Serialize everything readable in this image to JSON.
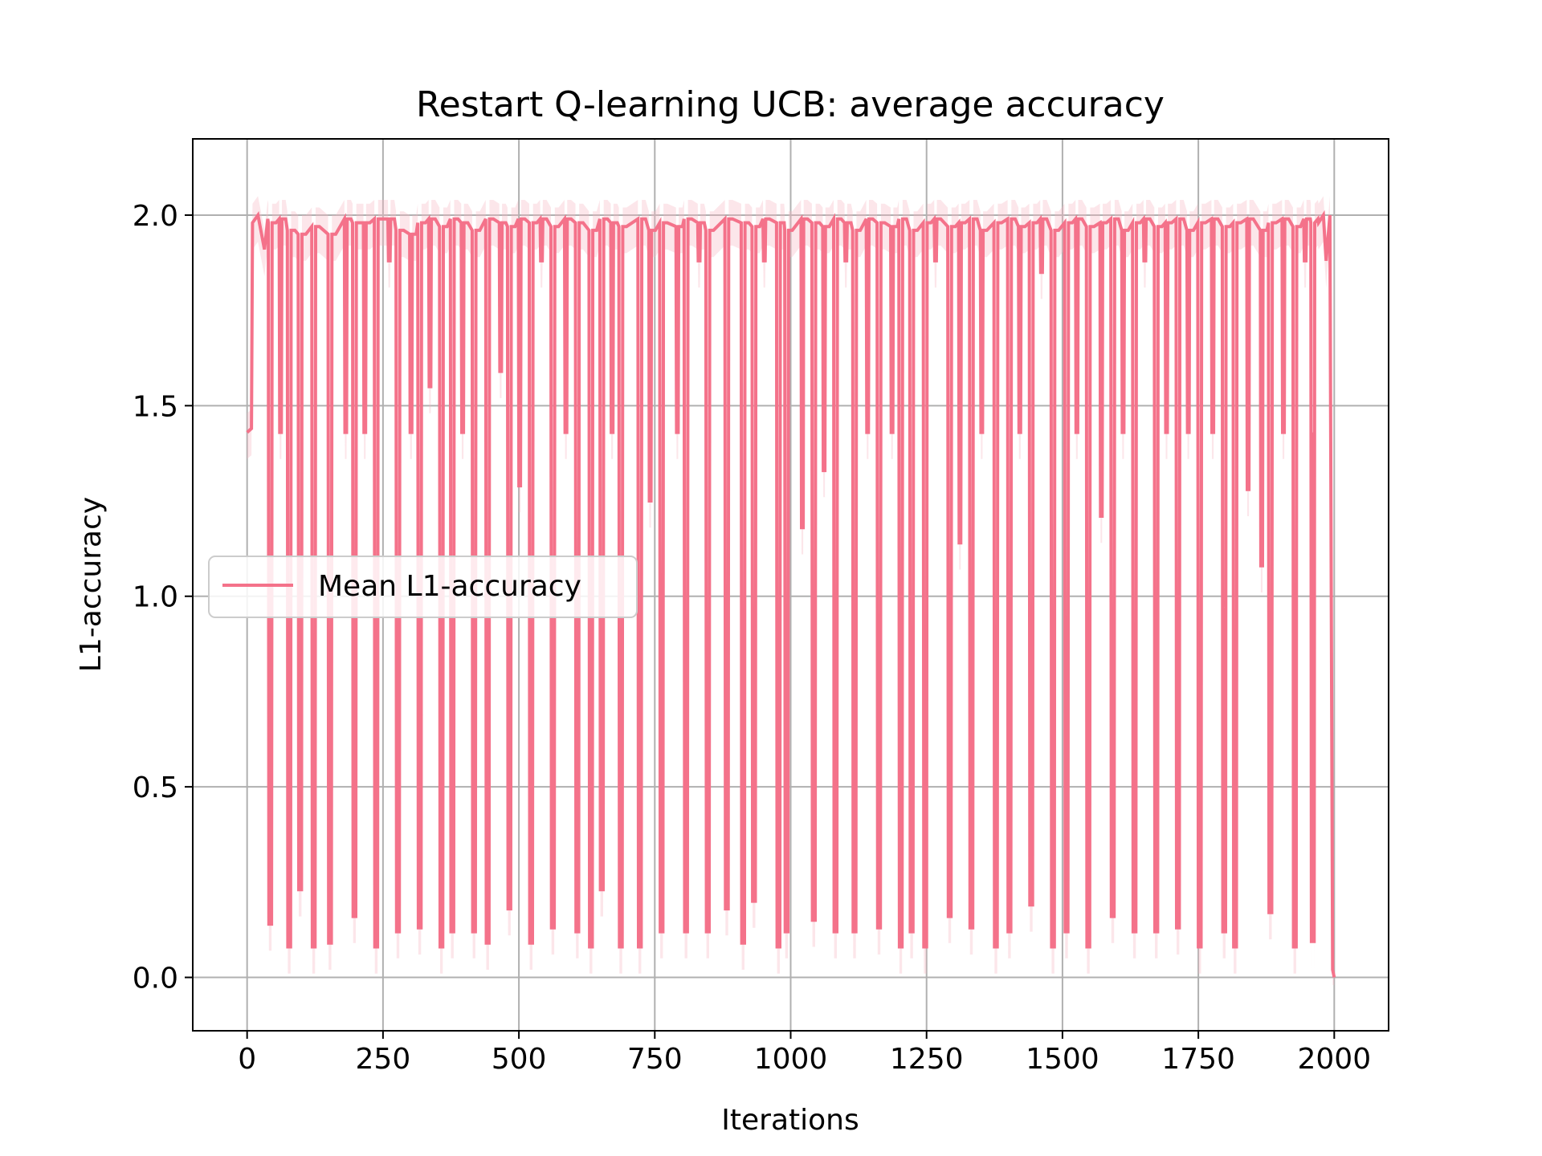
{
  "chart_data": {
    "type": "line",
    "title": "Restart Q-learning UCB: average accuracy",
    "xlabel": "Iterations",
    "ylabel": "L1-accuracy",
    "xlim": [
      -100,
      2100
    ],
    "ylim": [
      -0.14,
      2.2
    ],
    "x_ticks": [
      0,
      250,
      500,
      750,
      1000,
      1250,
      1500,
      1750,
      2000
    ],
    "x_tick_labels": [
      "0",
      "250",
      "500",
      "750",
      "1000",
      "1250",
      "1500",
      "1750",
      "2000"
    ],
    "y_ticks": [
      0.0,
      0.5,
      1.0,
      1.5,
      2.0
    ],
    "y_tick_labels": [
      "0.0",
      "0.5",
      "1.0",
      "1.5",
      "2.0"
    ],
    "grid": true,
    "legend_position": "center-left",
    "color": "#f4728a",
    "band_color": "#f7b6c4",
    "series": [
      {
        "name": "Mean L1-accuracy",
        "start_points": [
          [
            0,
            1.43
          ],
          [
            8,
            1.44
          ],
          [
            10,
            1.98
          ],
          [
            20,
            2.0
          ],
          [
            32,
            1.91
          ],
          [
            38,
            1.99
          ]
        ],
        "dips": [
          [
            40,
            0.14,
            1.98
          ],
          [
            60,
            1.43,
            1.99
          ],
          [
            75,
            0.08,
            1.96
          ],
          [
            95,
            0.23,
            1.95
          ],
          [
            120,
            0.08,
            1.97
          ],
          [
            150,
            0.09,
            1.95
          ],
          [
            180,
            1.43,
            1.99
          ],
          [
            195,
            0.16,
            1.98
          ],
          [
            215,
            1.43,
            1.98
          ],
          [
            235,
            0.08,
            1.99
          ],
          [
            260,
            1.88,
            1.99
          ],
          [
            275,
            0.12,
            1.96
          ],
          [
            300,
            1.43,
            1.95
          ],
          [
            315,
            0.13,
            1.98
          ],
          [
            335,
            1.55,
            1.99
          ],
          [
            355,
            0.08,
            1.97
          ],
          [
            375,
            0.12,
            1.99
          ],
          [
            395,
            1.43,
            1.98
          ],
          [
            415,
            0.12,
            1.96
          ],
          [
            440,
            0.09,
            1.99
          ],
          [
            465,
            1.59,
            1.98
          ],
          [
            480,
            0.18,
            1.97
          ],
          [
            500,
            1.29,
            1.99
          ],
          [
            520,
            0.09,
            1.98
          ],
          [
            540,
            1.88,
            1.99
          ],
          [
            560,
            0.13,
            1.97
          ],
          [
            585,
            1.43,
            1.99
          ],
          [
            605,
            0.12,
            1.98
          ],
          [
            630,
            0.08,
            1.96
          ],
          [
            650,
            0.23,
            1.99
          ],
          [
            670,
            1.43,
            1.98
          ],
          [
            685,
            0.08,
            1.97
          ],
          [
            720,
            0.08,
            1.99
          ],
          [
            740,
            1.25,
            1.96
          ],
          [
            760,
            0.12,
            1.98
          ],
          [
            790,
            1.43,
            1.97
          ],
          [
            805,
            0.12,
            1.99
          ],
          [
            830,
            1.88,
            1.98
          ],
          [
            845,
            0.12,
            1.96
          ],
          [
            880,
            0.18,
            1.99
          ],
          [
            910,
            0.09,
            1.98
          ],
          [
            930,
            0.2,
            1.97
          ],
          [
            950,
            1.88,
            1.99
          ],
          [
            975,
            0.08,
            1.98
          ],
          [
            990,
            0.12,
            1.96
          ],
          [
            1020,
            1.18,
            1.99
          ],
          [
            1040,
            0.15,
            1.98
          ],
          [
            1060,
            1.33,
            1.97
          ],
          [
            1080,
            0.12,
            1.99
          ],
          [
            1100,
            1.88,
            1.98
          ],
          [
            1115,
            0.12,
            1.96
          ],
          [
            1140,
            1.43,
            1.99
          ],
          [
            1160,
            0.13,
            1.98
          ],
          [
            1185,
            1.43,
            1.97
          ],
          [
            1200,
            0.08,
            1.99
          ],
          [
            1220,
            0.12,
            1.96
          ],
          [
            1245,
            0.08,
            1.98
          ],
          [
            1265,
            1.88,
            1.99
          ],
          [
            1290,
            0.16,
            1.97
          ],
          [
            1310,
            1.14,
            1.98
          ],
          [
            1330,
            0.13,
            1.99
          ],
          [
            1350,
            1.43,
            1.96
          ],
          [
            1375,
            0.08,
            1.98
          ],
          [
            1400,
            0.12,
            1.99
          ],
          [
            1420,
            1.43,
            1.97
          ],
          [
            1440,
            0.19,
            1.98
          ],
          [
            1460,
            1.85,
            1.99
          ],
          [
            1480,
            0.08,
            1.96
          ],
          [
            1505,
            0.12,
            1.98
          ],
          [
            1525,
            1.43,
            1.99
          ],
          [
            1545,
            0.08,
            1.97
          ],
          [
            1570,
            1.21,
            1.98
          ],
          [
            1590,
            0.16,
            1.99
          ],
          [
            1610,
            1.43,
            1.96
          ],
          [
            1630,
            0.12,
            1.98
          ],
          [
            1650,
            1.88,
            1.99
          ],
          [
            1670,
            0.12,
            1.97
          ],
          [
            1690,
            1.43,
            1.98
          ],
          [
            1710,
            0.13,
            1.99
          ],
          [
            1730,
            1.43,
            1.96
          ],
          [
            1750,
            0.08,
            1.98
          ],
          [
            1775,
            1.43,
            1.99
          ],
          [
            1795,
            0.12,
            1.97
          ],
          [
            1815,
            0.08,
            1.98
          ],
          [
            1840,
            1.28,
            1.99
          ],
          [
            1865,
            1.08,
            1.96
          ],
          [
            1880,
            0.17,
            1.98
          ],
          [
            1905,
            1.43,
            1.99
          ],
          [
            1925,
            0.08,
            1.97
          ],
          [
            1945,
            1.88,
            1.99
          ],
          [
            1958,
            0.09,
            1.98
          ]
        ],
        "end_points": [
          [
            1960,
            1.43
          ],
          [
            1970,
            1.99
          ],
          [
            1980,
            2.0
          ],
          [
            1985,
            1.88
          ],
          [
            1992,
            2.0
          ],
          [
            1997,
            0.02
          ],
          [
            2000,
            0.0
          ]
        ]
      }
    ]
  }
}
